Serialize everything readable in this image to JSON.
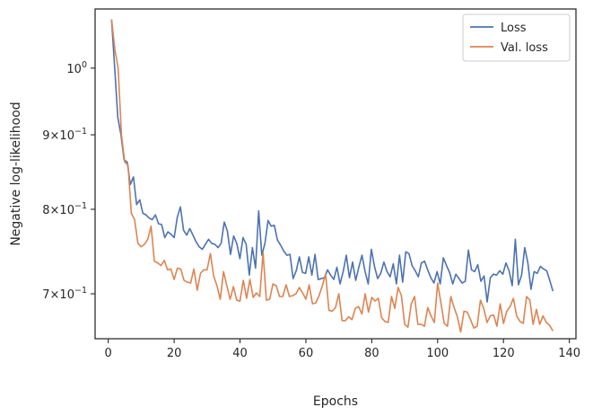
{
  "chart_data": {
    "type": "line",
    "title": "",
    "xlabel": "Epochs",
    "ylabel": "Negative log-likelihood",
    "xlim": [
      -4,
      142
    ],
    "ylim": [
      0.652,
      1.098
    ],
    "yscale": "log",
    "grid": false,
    "legend_position": "top-right",
    "x_ticks": [
      0,
      20,
      40,
      60,
      80,
      100,
      120,
      140
    ],
    "x_tick_labels": [
      "0",
      "20",
      "40",
      "60",
      "80",
      "100",
      "120",
      "140"
    ],
    "y_ticks": [
      1.0,
      0.9,
      0.8,
      0.7
    ],
    "y_tick_labels": [
      {
        "mantissa": "",
        "base": "10",
        "exp": "0"
      },
      {
        "mantissa": "9",
        "base": "10",
        "exp": "−1"
      },
      {
        "mantissa": "8",
        "base": "10",
        "exp": "−1"
      },
      {
        "mantissa": "7",
        "base": "10",
        "exp": "−1"
      }
    ],
    "colors": {
      "loss": "#4c72b0",
      "val_loss": "#dd8452",
      "axis": "#262626"
    },
    "x_start": 1,
    "x_end": 135,
    "series": [
      {
        "name": "Loss",
        "color": "#4c72b0",
        "values": [
          1.08,
          1.0,
          0.925,
          0.9,
          0.865,
          0.862,
          0.832,
          0.842,
          0.806,
          0.812,
          0.795,
          0.793,
          0.789,
          0.787,
          0.793,
          0.782,
          0.781,
          0.765,
          0.772,
          0.769,
          0.765,
          0.79,
          0.803,
          0.774,
          0.768,
          0.776,
          0.768,
          0.76,
          0.754,
          0.751,
          0.757,
          0.763,
          0.758,
          0.757,
          0.753,
          0.758,
          0.784,
          0.773,
          0.745,
          0.767,
          0.758,
          0.74,
          0.765,
          0.757,
          0.721,
          0.753,
          0.729,
          0.798,
          0.744,
          0.758,
          0.786,
          0.779,
          0.78,
          0.762,
          0.756,
          0.749,
          0.744,
          0.745,
          0.717,
          0.726,
          0.742,
          0.724,
          0.723,
          0.742,
          0.721,
          0.745,
          0.716,
          0.717,
          0.718,
          0.727,
          0.721,
          0.716,
          0.73,
          0.711,
          0.725,
          0.744,
          0.718,
          0.736,
          0.715,
          0.73,
          0.744,
          0.725,
          0.711,
          0.751,
          0.731,
          0.717,
          0.723,
          0.736,
          0.725,
          0.719,
          0.734,
          0.711,
          0.744,
          0.713,
          0.748,
          0.746,
          0.732,
          0.726,
          0.719,
          0.735,
          0.737,
          0.727,
          0.718,
          0.712,
          0.725,
          0.711,
          0.741,
          0.732,
          0.724,
          0.711,
          0.722,
          0.717,
          0.712,
          0.714,
          0.75,
          0.727,
          0.725,
          0.733,
          0.714,
          0.72,
          0.691,
          0.718,
          0.722,
          0.721,
          0.726,
          0.722,
          0.735,
          0.726,
          0.709,
          0.763,
          0.71,
          0.721,
          0.753,
          0.735,
          0.705,
          0.725,
          0.723,
          0.731,
          0.728,
          0.726,
          0.715,
          0.703
        ]
      },
      {
        "name": "Val. loss",
        "color": "#dd8452",
        "values": [
          1.08,
          1.03,
          1.0,
          0.9,
          0.862,
          0.858,
          0.795,
          0.787,
          0.758,
          0.754,
          0.757,
          0.763,
          0.779,
          0.737,
          0.735,
          0.732,
          0.738,
          0.727,
          0.728,
          0.716,
          0.729,
          0.728,
          0.715,
          0.713,
          0.712,
          0.728,
          0.704,
          0.723,
          0.727,
          0.727,
          0.746,
          0.72,
          0.709,
          0.694,
          0.725,
          0.709,
          0.694,
          0.708,
          0.693,
          0.692,
          0.715,
          0.695,
          0.716,
          0.696,
          0.701,
          0.697,
          0.747,
          0.693,
          0.694,
          0.711,
          0.709,
          0.697,
          0.697,
          0.71,
          0.697,
          0.698,
          0.7,
          0.707,
          0.701,
          0.694,
          0.71,
          0.689,
          0.69,
          0.698,
          0.709,
          0.722,
          0.682,
          0.681,
          0.685,
          0.7,
          0.671,
          0.671,
          0.675,
          0.672,
          0.684,
          0.686,
          0.678,
          0.7,
          0.68,
          0.696,
          0.692,
          0.695,
          0.674,
          0.67,
          0.669,
          0.697,
          0.684,
          0.707,
          0.698,
          0.667,
          0.664,
          0.689,
          0.697,
          0.667,
          0.667,
          0.665,
          0.685,
          0.676,
          0.669,
          0.712,
          0.69,
          0.668,
          0.665,
          0.697,
          0.685,
          0.675,
          0.659,
          0.681,
          0.68,
          0.672,
          0.663,
          0.665,
          0.693,
          0.684,
          0.669,
          0.676,
          0.677,
          0.665,
          0.689,
          0.668,
          0.681,
          0.686,
          0.695,
          0.676,
          0.67,
          0.668,
          0.697,
          0.693,
          0.667,
          0.683,
          0.667,
          0.676,
          0.669,
          0.666,
          0.66
        ]
      }
    ]
  }
}
